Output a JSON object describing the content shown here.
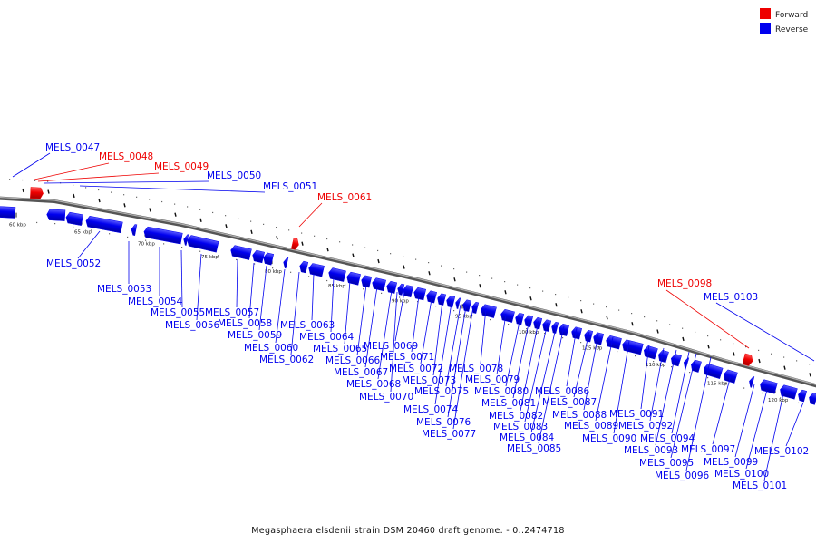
{
  "caption": "Megasphaera elsdenii strain DSM 20460 draft genome. - 0..2474718",
  "legend": [
    {
      "label": "Forward",
      "color": "#ee0000"
    },
    {
      "label": "Reverse",
      "color": "#0000ee"
    }
  ],
  "colors": {
    "forward": "#ee0000",
    "reverse": "#0000ee",
    "backbone": "#888888"
  },
  "scale_labels": [
    "60 kbp",
    "65 kbp",
    "70 kbp",
    "75 kbp",
    "80 kbp",
    "85 kbp",
    "90 kbp",
    "95 kbp",
    "100 kbp",
    "105 kbp",
    "110 kbp",
    "115 kbp",
    "120 kbp"
  ],
  "forward_labels": [
    "MELS_0048",
    "MELS_0049",
    "MELS_0061",
    "MELS_0098"
  ],
  "outer_reverse_labels": [
    "MELS_0047",
    "MELS_0050",
    "MELS_0051",
    "MELS_0103"
  ],
  "inner_labels": [
    "MELS_0052",
    "MELS_0053",
    "MELS_0054",
    "MELS_0055",
    "MELS_0056",
    "MELS_0057",
    "MELS_0058",
    "MELS_0059",
    "MELS_0060",
    "MELS_0062",
    "MELS_0063",
    "MELS_0064",
    "MELS_0065",
    "MELS_0066",
    "MELS_0067",
    "MELS_0068",
    "MELS_0069",
    "MELS_0070",
    "MELS_0071",
    "MELS_0072",
    "MELS_0073",
    "MELS_0074",
    "MELS_0075",
    "MELS_0076",
    "MELS_0077",
    "MELS_0078",
    "MELS_0079",
    "MELS_0080",
    "MELS_0081",
    "MELS_0082",
    "MELS_0083",
    "MELS_0084",
    "MELS_0085",
    "MELS_0086",
    "MELS_0087",
    "MELS_0088",
    "MELS_0089",
    "MELS_0090",
    "MELS_0091",
    "MELS_0092",
    "MELS_0093",
    "MELS_0094",
    "MELS_0095",
    "MELS_0096",
    "MELS_0097",
    "MELS_0099",
    "MELS_0100",
    "MELS_0101",
    "MELS_0102"
  ]
}
